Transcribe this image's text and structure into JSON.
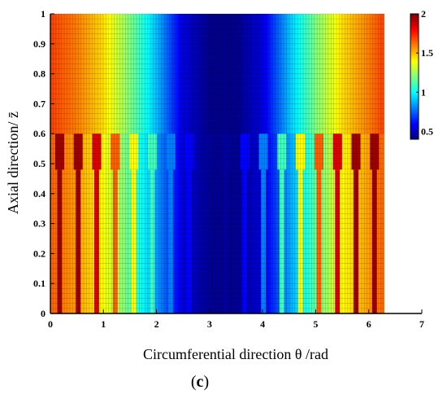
{
  "chart_data": {
    "type": "heatmap",
    "xlabel": "Circumferential direction θ /rad",
    "ylabel": "Axial direction/ z̄",
    "panel_label": {
      "open": "(",
      "letter": "c",
      "close": ")"
    },
    "xlim": [
      0,
      7
    ],
    "ylim": [
      0,
      1
    ],
    "x_ticks": [
      0,
      1,
      2,
      3,
      4,
      5,
      6,
      7
    ],
    "y_ticks": [
      0,
      0.1,
      0.2,
      0.3,
      0.4,
      0.5,
      0.6,
      0.7,
      0.8,
      0.9,
      1
    ],
    "data_x_range": [
      0,
      6.2832
    ],
    "colorbar": {
      "min": 0.4,
      "max": 2.0,
      "ticks": [
        0.5,
        1,
        1.5,
        2
      ],
      "colormap": "jet"
    },
    "grid": true,
    "smooth_region": {
      "y_range": [
        0.6,
        1.0
      ],
      "profile_theta": [
        0,
        0.5,
        1.0,
        1.5,
        2.0,
        2.5,
        3.0,
        3.5,
        4.0,
        4.5,
        5.0,
        5.5,
        6.0,
        6.2832
      ],
      "profile_value": [
        1.7,
        1.6,
        1.45,
        1.2,
        0.9,
        0.55,
        0.42,
        0.42,
        0.55,
        0.9,
        1.2,
        1.45,
        1.6,
        1.7
      ]
    },
    "lower_region": {
      "y_range": [
        0,
        0.6
      ],
      "background_profile_theta": [
        0,
        0.5,
        1.0,
        1.5,
        2.0,
        2.5,
        3.0,
        3.5,
        4.0,
        4.5,
        5.0,
        5.5,
        6.0,
        6.2832
      ],
      "background_profile_value": [
        1.65,
        1.55,
        1.4,
        1.15,
        0.85,
        0.55,
        0.43,
        0.43,
        0.55,
        0.85,
        1.15,
        1.4,
        1.55,
        1.65
      ],
      "grooves": [
        {
          "center": 0.1745,
          "value": 1.95
        },
        {
          "center": 0.5236,
          "value": 1.95
        },
        {
          "center": 0.8727,
          "value": 1.85
        },
        {
          "center": 1.2217,
          "value": 1.65
        },
        {
          "center": 1.5708,
          "value": 1.4
        },
        {
          "center": 1.9199,
          "value": 1.1
        },
        {
          "center": 2.2689,
          "value": 0.8
        },
        {
          "center": 2.618,
          "value": 0.6
        },
        {
          "center": 2.9671,
          "value": 0.45
        },
        {
          "center": 3.3161,
          "value": 0.45
        },
        {
          "center": 3.6652,
          "value": 0.6
        },
        {
          "center": 4.0143,
          "value": 0.8
        },
        {
          "center": 4.3633,
          "value": 1.1
        },
        {
          "center": 4.7124,
          "value": 1.4
        },
        {
          "center": 5.0615,
          "value": 1.65
        },
        {
          "center": 5.4105,
          "value": 1.85
        },
        {
          "center": 5.7596,
          "value": 1.95
        },
        {
          "center": 6.1087,
          "value": 1.95
        }
      ],
      "groove_head_y_range": [
        0.48,
        0.6
      ],
      "groove_head_half_width": 0.085,
      "groove_stem_half_width": 0.045
    }
  }
}
